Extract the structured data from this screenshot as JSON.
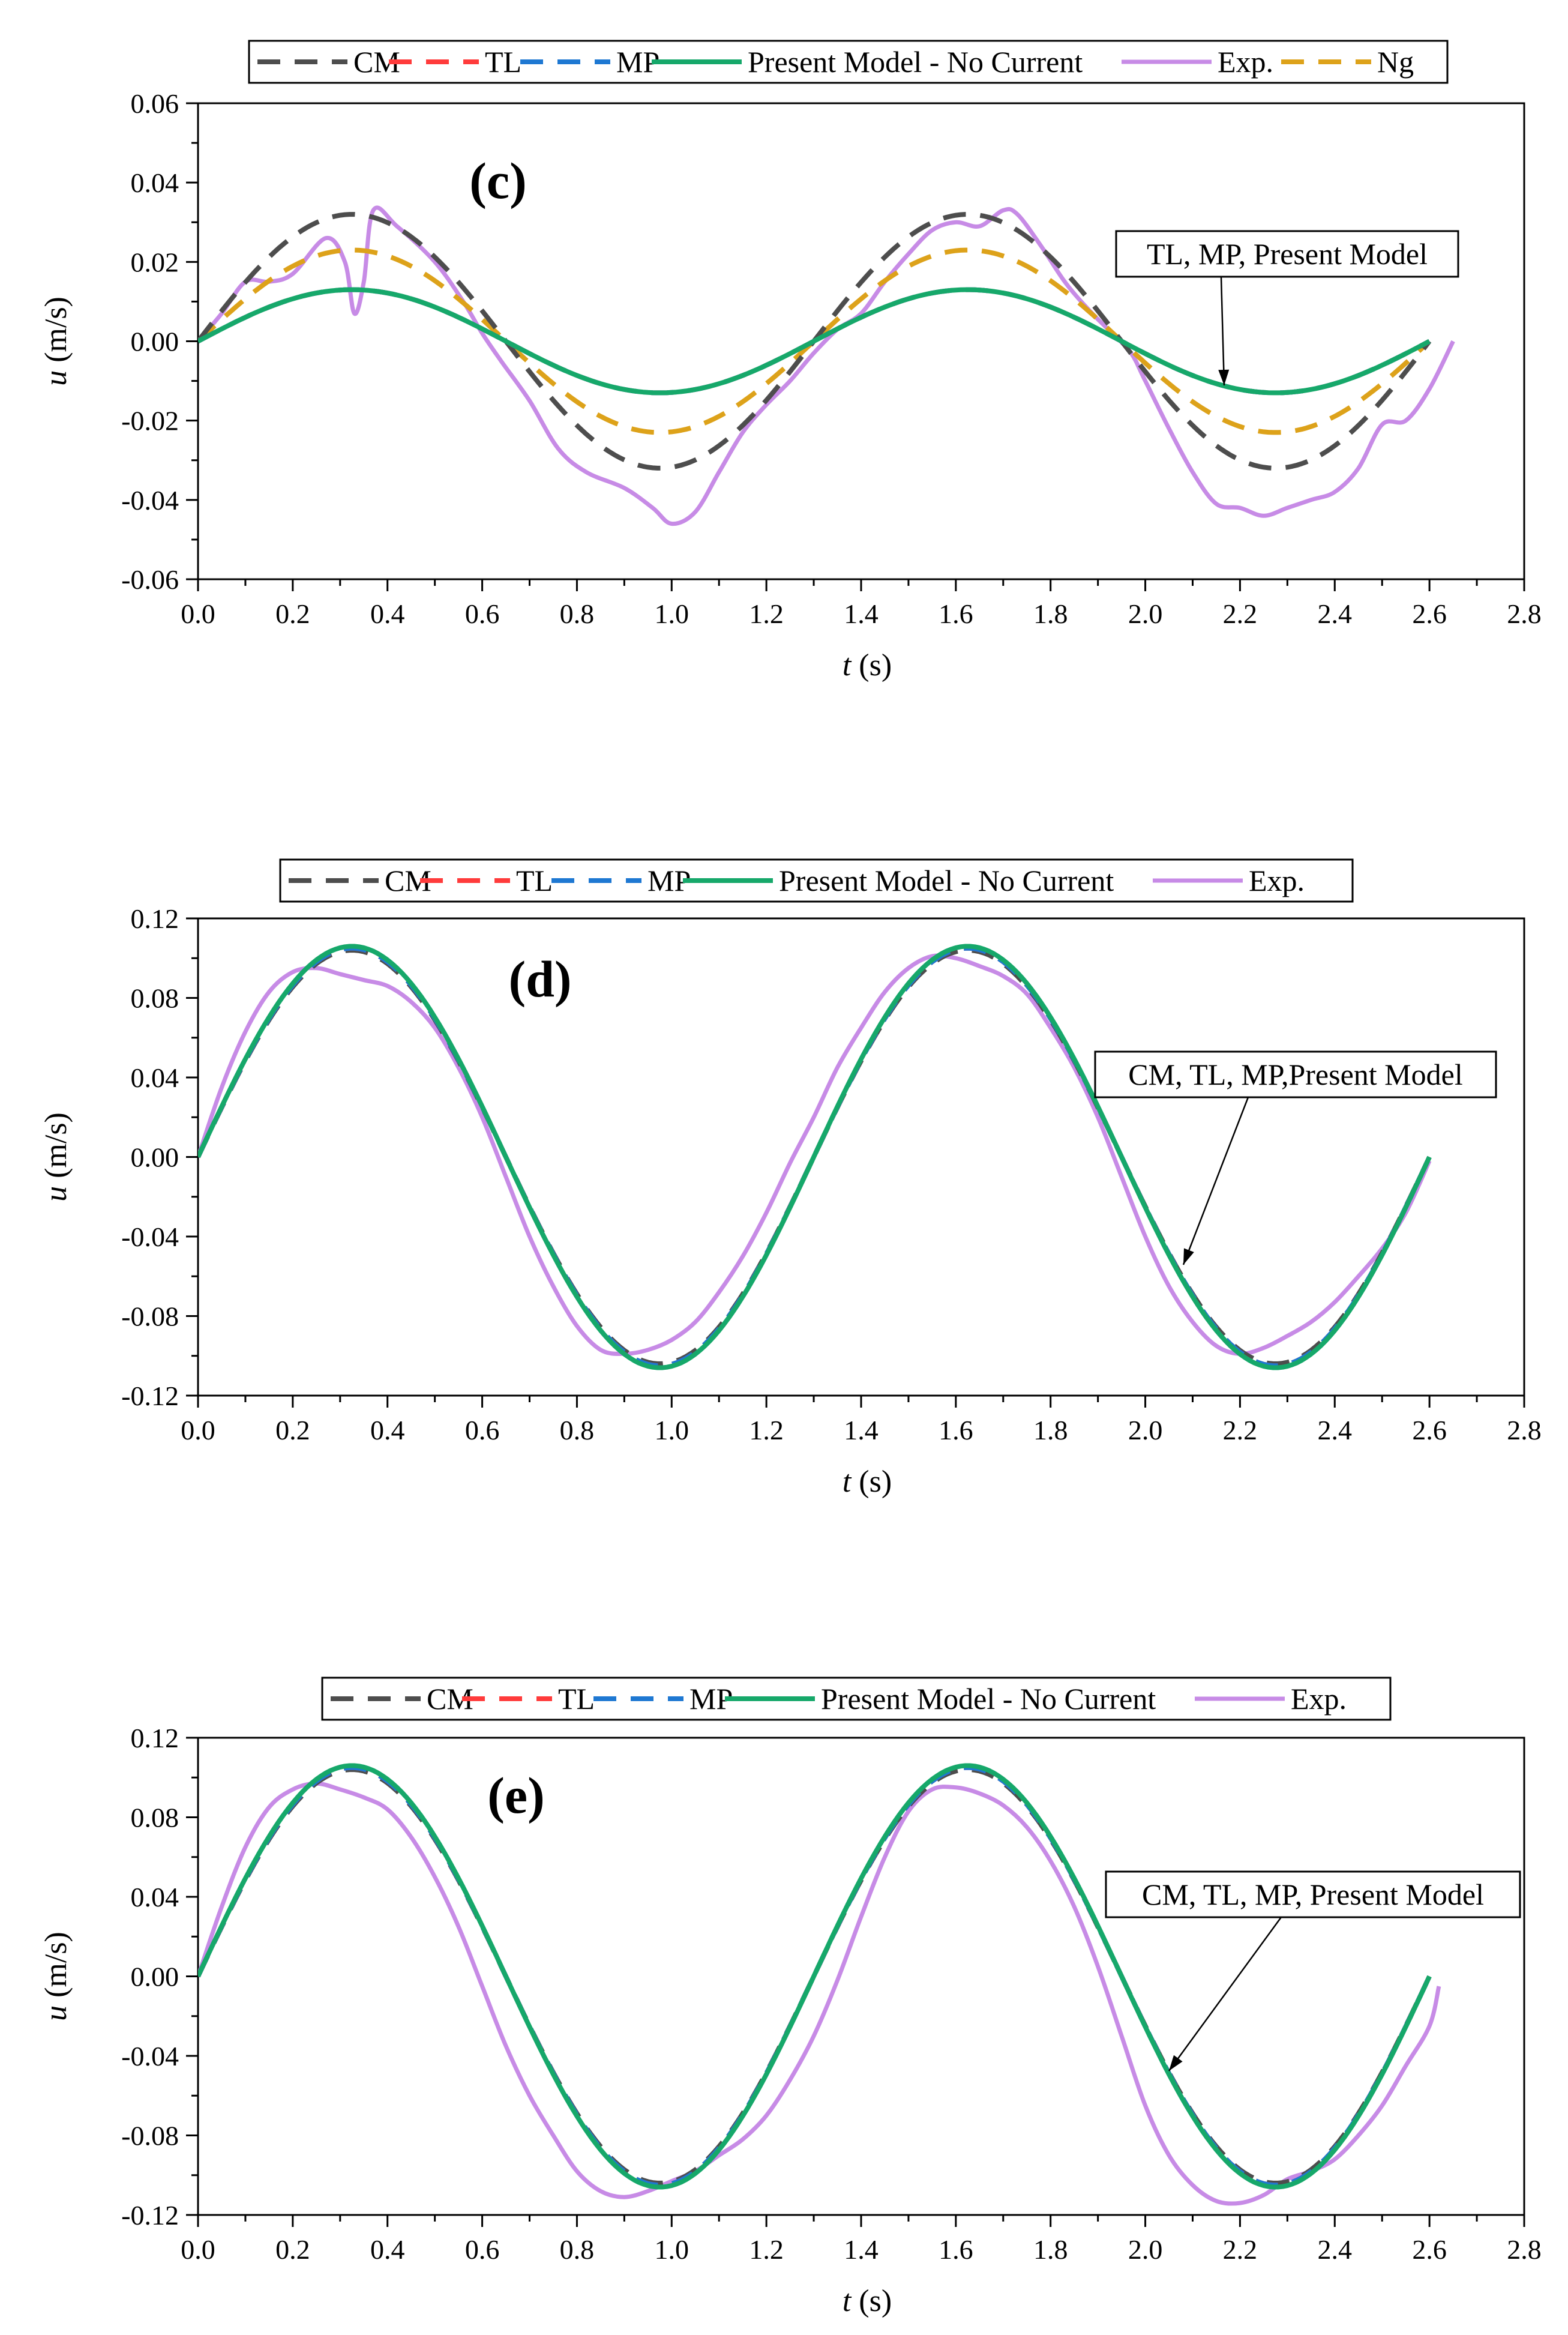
{
  "colors": {
    "CM": "#4d4d4d",
    "TL": "#ff3b3b",
    "MP": "#1e78d2",
    "Present": "#16a86a",
    "Exp": "#c78be6",
    "Ng": "#dda21a",
    "axis": "#000000",
    "callout_border": "#000000"
  },
  "chart_data": [
    {
      "id": "c",
      "type": "line",
      "panel_label": "(c)",
      "xlabel_var": "t",
      "xlabel_unit": " (s)",
      "ylabel_var": "u",
      "ylabel_unit": " (m/s)",
      "xlim": [
        0.0,
        2.8
      ],
      "ylim": [
        -0.06,
        0.06
      ],
      "xticks": [
        "0.0",
        "0.2",
        "0.4",
        "0.6",
        "0.8",
        "1.0",
        "1.2",
        "1.4",
        "1.6",
        "1.8",
        "2.0",
        "2.2",
        "2.4",
        "2.6",
        "2.8"
      ],
      "yticks": [
        "0.06",
        "0.04",
        "0.02",
        "0.00",
        "-0.02",
        "-0.04",
        "-0.06"
      ],
      "legend": [
        "CM",
        "TL",
        "MP",
        "Present Model - No Current",
        "Exp.",
        "Ng"
      ],
      "annotation": "TL, MP, Present Model",
      "period_s": 1.3,
      "series": [
        {
          "name": "CM",
          "amplitude": 0.032,
          "phase_shift_s": 0.0,
          "t_end": 2.6
        },
        {
          "name": "TL",
          "amplitude": 0.013,
          "phase_shift_s": 0.0,
          "t_end": 2.6
        },
        {
          "name": "MP",
          "amplitude": 0.013,
          "phase_shift_s": 0.0,
          "t_end": 2.6
        },
        {
          "name": "Present Model - No Current",
          "amplitude": 0.013,
          "phase_shift_s": 0.0,
          "t_end": 2.6
        },
        {
          "name": "Ng",
          "amplitude": 0.023,
          "phase_shift_s": 0.0,
          "t_end": 2.6
        },
        {
          "name": "Exp.",
          "points": [
            [
              0.0,
              0.0
            ],
            [
              0.05,
              0.007
            ],
            [
              0.1,
              0.015
            ],
            [
              0.15,
              0.015
            ],
            [
              0.2,
              0.017
            ],
            [
              0.27,
              0.026
            ],
            [
              0.31,
              0.02
            ],
            [
              0.33,
              0.007
            ],
            [
              0.35,
              0.015
            ],
            [
              0.37,
              0.033
            ],
            [
              0.42,
              0.029
            ],
            [
              0.5,
              0.02
            ],
            [
              0.56,
              0.01
            ],
            [
              0.6,
              0.002
            ],
            [
              0.64,
              -0.005
            ],
            [
              0.7,
              -0.015
            ],
            [
              0.76,
              -0.027
            ],
            [
              0.82,
              -0.033
            ],
            [
              0.9,
              -0.037
            ],
            [
              0.96,
              -0.042
            ],
            [
              1.0,
              -0.046
            ],
            [
              1.05,
              -0.043
            ],
            [
              1.1,
              -0.033
            ],
            [
              1.15,
              -0.023
            ],
            [
              1.2,
              -0.016
            ],
            [
              1.25,
              -0.01
            ],
            [
              1.3,
              -0.003
            ],
            [
              1.35,
              0.003
            ],
            [
              1.4,
              0.007
            ],
            [
              1.45,
              0.015
            ],
            [
              1.5,
              0.022
            ],
            [
              1.55,
              0.028
            ],
            [
              1.6,
              0.03
            ],
            [
              1.65,
              0.029
            ],
            [
              1.7,
              0.033
            ],
            [
              1.73,
              0.032
            ],
            [
              1.78,
              0.024
            ],
            [
              1.83,
              0.015
            ],
            [
              1.88,
              0.008
            ],
            [
              1.93,
              0.002
            ],
            [
              1.97,
              -0.003
            ],
            [
              2.0,
              -0.01
            ],
            [
              2.05,
              -0.022
            ],
            [
              2.1,
              -0.033
            ],
            [
              2.15,
              -0.041
            ],
            [
              2.2,
              -0.042
            ],
            [
              2.25,
              -0.044
            ],
            [
              2.3,
              -0.042
            ],
            [
              2.35,
              -0.04
            ],
            [
              2.4,
              -0.038
            ],
            [
              2.45,
              -0.032
            ],
            [
              2.5,
              -0.021
            ],
            [
              2.55,
              -0.02
            ],
            [
              2.6,
              -0.012
            ],
            [
              2.65,
              0.0
            ]
          ]
        }
      ]
    },
    {
      "id": "d",
      "type": "line",
      "panel_label": "(d)",
      "xlabel_var": "t",
      "xlabel_unit": " (s)",
      "ylabel_var": "u",
      "ylabel_unit": " (m/s)",
      "xlim": [
        0.0,
        2.8
      ],
      "ylim": [
        -0.12,
        0.12
      ],
      "xticks": [
        "0.0",
        "0.2",
        "0.4",
        "0.6",
        "0.8",
        "1.0",
        "1.2",
        "1.4",
        "1.6",
        "1.8",
        "2.0",
        "2.2",
        "2.4",
        "2.6",
        "2.8"
      ],
      "yticks": [
        "0.12",
        "0.08",
        "0.04",
        "0.00",
        "-0.04",
        "-0.08",
        "-0.12"
      ],
      "legend": [
        "CM",
        "TL",
        "MP",
        "Present Model - No Current",
        "Exp."
      ],
      "annotation": "CM, TL, MP,Present Model",
      "period_s": 1.3,
      "series": [
        {
          "name": "CM",
          "amplitude": 0.104,
          "phase_shift_s": 0.0,
          "t_end": 2.6
        },
        {
          "name": "TL",
          "amplitude": 0.105,
          "phase_shift_s": 0.0,
          "t_end": 2.6
        },
        {
          "name": "MP",
          "amplitude": 0.105,
          "phase_shift_s": 0.0,
          "t_end": 2.6
        },
        {
          "name": "Present Model - No Current",
          "amplitude": 0.106,
          "phase_shift_s": 0.0,
          "t_end": 2.6
        },
        {
          "name": "Exp.",
          "points": [
            [
              0.0,
              0.0
            ],
            [
              0.05,
              0.035
            ],
            [
              0.1,
              0.063
            ],
            [
              0.15,
              0.083
            ],
            [
              0.2,
              0.093
            ],
            [
              0.25,
              0.095
            ],
            [
              0.3,
              0.092
            ],
            [
              0.35,
              0.089
            ],
            [
              0.4,
              0.086
            ],
            [
              0.45,
              0.078
            ],
            [
              0.5,
              0.065
            ],
            [
              0.55,
              0.045
            ],
            [
              0.6,
              0.02
            ],
            [
              0.65,
              -0.01
            ],
            [
              0.7,
              -0.04
            ],
            [
              0.75,
              -0.065
            ],
            [
              0.8,
              -0.085
            ],
            [
              0.85,
              -0.097
            ],
            [
              0.9,
              -0.099
            ],
            [
              0.95,
              -0.097
            ],
            [
              1.0,
              -0.092
            ],
            [
              1.05,
              -0.083
            ],
            [
              1.1,
              -0.068
            ],
            [
              1.15,
              -0.05
            ],
            [
              1.2,
              -0.028
            ],
            [
              1.25,
              -0.003
            ],
            [
              1.3,
              0.02
            ],
            [
              1.35,
              0.045
            ],
            [
              1.4,
              0.065
            ],
            [
              1.45,
              0.083
            ],
            [
              1.5,
              0.095
            ],
            [
              1.55,
              0.101
            ],
            [
              1.6,
              0.1
            ],
            [
              1.65,
              0.096
            ],
            [
              1.7,
              0.091
            ],
            [
              1.75,
              0.082
            ],
            [
              1.8,
              0.065
            ],
            [
              1.85,
              0.045
            ],
            [
              1.9,
              0.02
            ],
            [
              1.95,
              -0.01
            ],
            [
              2.0,
              -0.04
            ],
            [
              2.05,
              -0.065
            ],
            [
              2.1,
              -0.083
            ],
            [
              2.15,
              -0.095
            ],
            [
              2.2,
              -0.099
            ],
            [
              2.25,
              -0.096
            ],
            [
              2.3,
              -0.09
            ],
            [
              2.35,
              -0.083
            ],
            [
              2.4,
              -0.073
            ],
            [
              2.45,
              -0.06
            ],
            [
              2.5,
              -0.046
            ],
            [
              2.55,
              -0.028
            ],
            [
              2.6,
              -0.002
            ]
          ]
        }
      ]
    },
    {
      "id": "e",
      "type": "line",
      "panel_label": "(e)",
      "xlabel_var": "t",
      "xlabel_unit": " (s)",
      "ylabel_var": "u",
      "ylabel_unit": " (m/s)",
      "xlim": [
        0.0,
        2.8
      ],
      "ylim": [
        -0.12,
        0.12
      ],
      "xticks": [
        "0.0",
        "0.2",
        "0.4",
        "0.6",
        "0.8",
        "1.0",
        "1.2",
        "1.4",
        "1.6",
        "1.8",
        "2.0",
        "2.2",
        "2.4",
        "2.6",
        "2.8"
      ],
      "yticks": [
        "0.12",
        "0.08",
        "0.04",
        "0.00",
        "-0.04",
        "-0.08",
        "-0.12"
      ],
      "legend": [
        "CM",
        "TL",
        "MP",
        "Present Model - No Current",
        "Exp."
      ],
      "annotation": "CM, TL, MP, Present Model",
      "period_s": 1.3,
      "series": [
        {
          "name": "CM",
          "amplitude": 0.104,
          "phase_shift_s": 0.0,
          "t_end": 2.6
        },
        {
          "name": "TL",
          "amplitude": 0.105,
          "phase_shift_s": 0.0,
          "t_end": 2.6
        },
        {
          "name": "MP",
          "amplitude": 0.105,
          "phase_shift_s": 0.0,
          "t_end": 2.6
        },
        {
          "name": "Present Model - No Current",
          "amplitude": 0.106,
          "phase_shift_s": 0.0,
          "t_end": 2.6
        },
        {
          "name": "Exp.",
          "points": [
            [
              0.0,
              0.0
            ],
            [
              0.05,
              0.035
            ],
            [
              0.1,
              0.065
            ],
            [
              0.15,
              0.085
            ],
            [
              0.2,
              0.094
            ],
            [
              0.25,
              0.097
            ],
            [
              0.3,
              0.094
            ],
            [
              0.35,
              0.09
            ],
            [
              0.4,
              0.084
            ],
            [
              0.45,
              0.07
            ],
            [
              0.5,
              0.05
            ],
            [
              0.55,
              0.025
            ],
            [
              0.6,
              -0.005
            ],
            [
              0.65,
              -0.035
            ],
            [
              0.7,
              -0.06
            ],
            [
              0.75,
              -0.08
            ],
            [
              0.8,
              -0.098
            ],
            [
              0.85,
              -0.108
            ],
            [
              0.9,
              -0.111
            ],
            [
              0.95,
              -0.108
            ],
            [
              1.0,
              -0.103
            ],
            [
              1.05,
              -0.098
            ],
            [
              1.1,
              -0.09
            ],
            [
              1.15,
              -0.082
            ],
            [
              1.2,
              -0.07
            ],
            [
              1.25,
              -0.052
            ],
            [
              1.3,
              -0.03
            ],
            [
              1.35,
              -0.002
            ],
            [
              1.4,
              0.03
            ],
            [
              1.45,
              0.06
            ],
            [
              1.5,
              0.083
            ],
            [
              1.55,
              0.094
            ],
            [
              1.6,
              0.095
            ],
            [
              1.65,
              0.092
            ],
            [
              1.7,
              0.086
            ],
            [
              1.75,
              0.075
            ],
            [
              1.8,
              0.058
            ],
            [
              1.85,
              0.035
            ],
            [
              1.9,
              0.005
            ],
            [
              1.95,
              -0.03
            ],
            [
              2.0,
              -0.065
            ],
            [
              2.05,
              -0.09
            ],
            [
              2.1,
              -0.105
            ],
            [
              2.15,
              -0.113
            ],
            [
              2.2,
              -0.114
            ],
            [
              2.25,
              -0.11
            ],
            [
              2.3,
              -0.102
            ],
            [
              2.35,
              -0.098
            ],
            [
              2.4,
              -0.092
            ],
            [
              2.45,
              -0.08
            ],
            [
              2.5,
              -0.065
            ],
            [
              2.55,
              -0.045
            ],
            [
              2.6,
              -0.025
            ],
            [
              2.62,
              -0.005
            ]
          ]
        }
      ]
    }
  ]
}
